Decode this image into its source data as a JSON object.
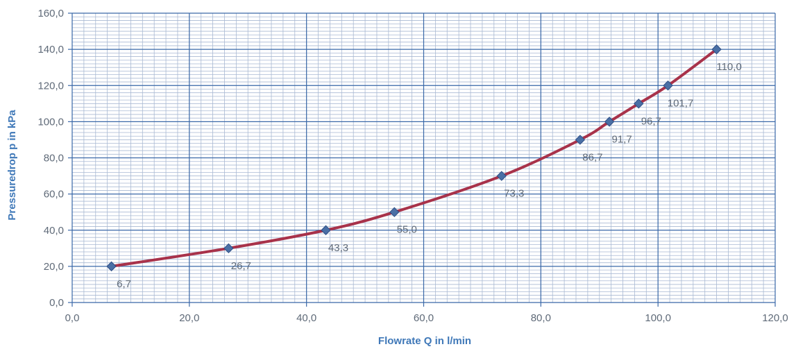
{
  "chart_data": {
    "type": "line",
    "title": "",
    "xlabel": "Flowrate Q in l/min",
    "ylabel": "Pressuredrop p in kPa",
    "xlim": [
      0,
      120
    ],
    "ylim": [
      0,
      160
    ],
    "x_ticks": [
      "0,0",
      "20,0",
      "40,0",
      "60,0",
      "80,0",
      "100,0",
      "120,0"
    ],
    "y_ticks": [
      "0,0",
      "20,0",
      "40,0",
      "60,0",
      "80,0",
      "100,0",
      "120,0",
      "140,0",
      "160,0"
    ],
    "grid": true,
    "legend": "none",
    "series": [
      {
        "x": [
          6.7,
          26.7,
          43.3,
          55.0,
          73.3,
          86.7,
          91.7,
          96.7,
          101.7,
          110.0
        ],
        "y": [
          20,
          30,
          40,
          50,
          70,
          90,
          100,
          110,
          120,
          140
        ],
        "labels": [
          "6,7",
          "26,7",
          "43,3",
          "55,0",
          "73,3",
          "86,7",
          "91,7",
          "96,7",
          "101,7",
          "110,0"
        ],
        "marker_color": "#4a6fa5",
        "line_color": "#a8324a"
      }
    ],
    "colors": {
      "major_grid": "#3a68a8",
      "minor_grid": "#a9b9d3",
      "axis_text": "#5f6a78",
      "axis_title": "#3f78b8"
    }
  }
}
